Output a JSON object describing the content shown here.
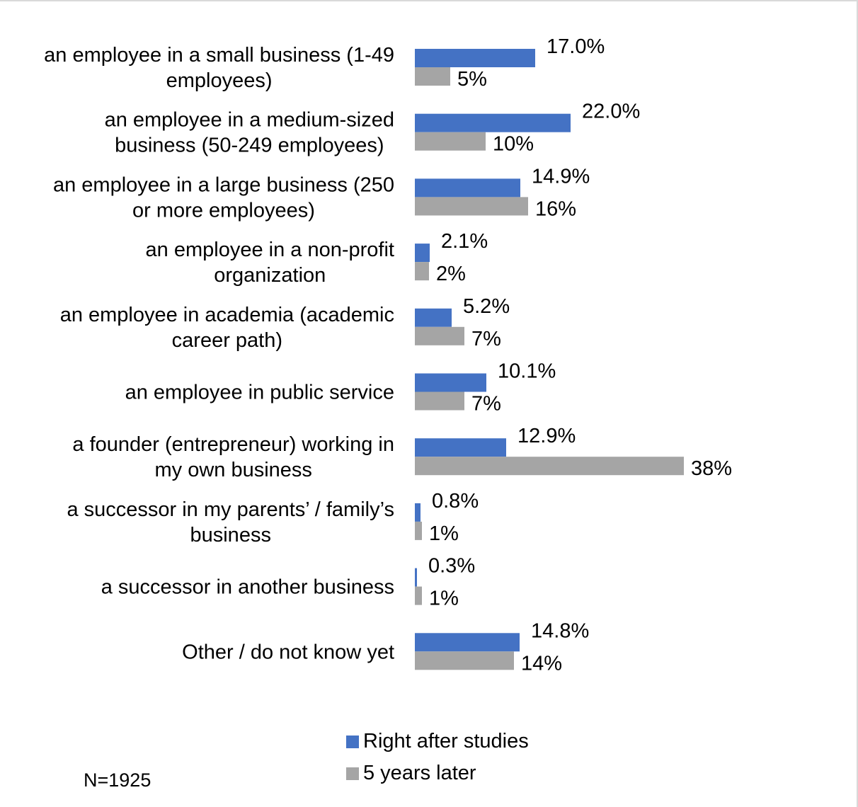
{
  "chart_data": {
    "type": "bar",
    "orientation": "horizontal",
    "categories": [
      [
        "an employee in a small business (1-49",
        "employees)"
      ],
      [
        "an employee in a medium-sized",
        "business (50-249 employees)"
      ],
      [
        "an employee in a large business (250",
        "or more employees)"
      ],
      [
        "an employee in a non-profit",
        "organization"
      ],
      [
        "an employee in academia (academic",
        "career path)"
      ],
      [
        "an employee in public service"
      ],
      [
        "a founder (entrepreneur) working in",
        "my own business"
      ],
      [
        "a successor in my parents’ / family’s",
        "business"
      ],
      [
        "a successor in another business"
      ],
      [
        "Other / do not know yet"
      ]
    ],
    "series": [
      {
        "name": "Right after studies",
        "color": "#4472c4",
        "values": [
          17.0,
          22.0,
          14.9,
          2.1,
          5.2,
          10.1,
          12.9,
          0.8,
          0.3,
          14.8
        ],
        "labels": [
          "17.0%",
          "22.0%",
          "14.9%",
          "2.1%",
          "5.2%",
          "10.1%",
          "12.9%",
          "0.8%",
          "0.3%",
          "14.8%"
        ]
      },
      {
        "name": "5 years later",
        "color": "#a5a5a5",
        "values": [
          5,
          10,
          16,
          2,
          7,
          7,
          38,
          1,
          1,
          14
        ],
        "labels": [
          "5%",
          "10%",
          "16%",
          "2%",
          "7%",
          "7%",
          "38%",
          "1%",
          "1%",
          "14%"
        ]
      }
    ],
    "xlim": [
      0,
      38
    ],
    "grid": false,
    "legend_position": "bottom"
  },
  "note": "N=1925"
}
